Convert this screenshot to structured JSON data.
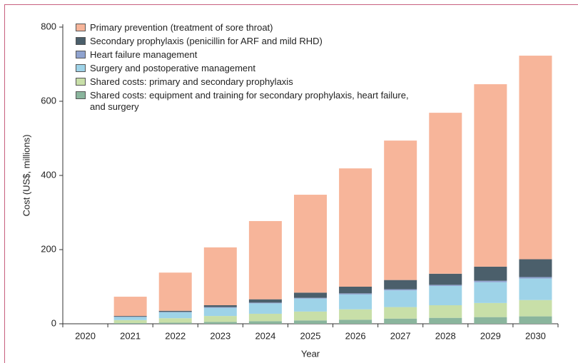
{
  "chart_data": {
    "type": "stacked-bar",
    "xlabel": "Year",
    "ylabel": "Cost (US$, millions)",
    "categories": [
      "2020",
      "2021",
      "2022",
      "2023",
      "2024",
      "2025",
      "2026",
      "2027",
      "2028",
      "2029",
      "2030"
    ],
    "ylim": [
      0,
      800
    ],
    "yticks": [
      0,
      200,
      400,
      600,
      800
    ],
    "series": [
      {
        "name": "Shared costs: equipment and training for secondary prophylaxis, heart failure, and surgery",
        "color": "#8ab59d",
        "values": [
          0,
          2,
          3,
          5,
          7,
          9,
          11,
          14,
          16,
          18,
          20
        ]
      },
      {
        "name": "Shared costs: primary and secondary prophylaxis",
        "color": "#c8dfa8",
        "values": [
          0,
          8,
          12,
          16,
          20,
          24,
          28,
          31,
          34,
          38,
          44
        ]
      },
      {
        "name": "Surgery and postoperative management",
        "color": "#9ed3e8",
        "values": [
          0,
          8,
          16,
          22,
          28,
          35,
          40,
          45,
          52,
          56,
          58
        ]
      },
      {
        "name": "Heart failure management",
        "color": "#8fa3cf",
        "values": [
          0,
          1,
          1,
          2,
          2,
          2,
          3,
          3,
          3,
          4,
          4
        ]
      },
      {
        "name": "Secondary prophylaxis (penicillin for ARF and mild RHD)",
        "color": "#4b5f6b",
        "values": [
          0,
          2,
          3,
          5,
          9,
          14,
          18,
          25,
          30,
          38,
          48
        ]
      },
      {
        "name": "Primary prevention (treatment of sore throat)",
        "color": "#f7b59a",
        "values": [
          0,
          52,
          103,
          156,
          211,
          264,
          319,
          376,
          434,
          492,
          549
        ]
      }
    ]
  }
}
